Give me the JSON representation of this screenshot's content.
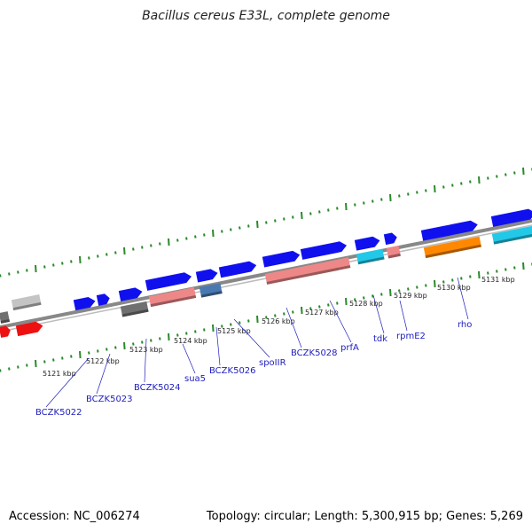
{
  "title": "Bacillus cereus E33L, complete genome",
  "footer": {
    "accession": "Accession: NC_006274",
    "summary": "Topology: circular; Length: 5,300,915 bp; Genes: 5,269"
  },
  "colors": {
    "backbone": "#888888",
    "tick": "#2a8a2a",
    "label": "#2020c0",
    "blue": "#1010ee",
    "red": "#ee1111",
    "gray": "#707070",
    "lightgray": "#c4c4c4",
    "pink": "#ee8888",
    "steelblue": "#4a78b0",
    "cyan": "#22c8e8",
    "orange": "#ff8800"
  },
  "scale_marks": [
    "5121 kbp",
    "5122 kbp",
    "5123 kbp",
    "5124 kbp",
    "5125 kbp",
    "5126 kbp",
    "5127 kbp",
    "5128 kbp",
    "5129 kbp",
    "5130 kbp",
    "5131 kbp"
  ],
  "gene_labels": [
    "BCZK5022",
    "BCZK5023",
    "BCZK5024",
    "sua5",
    "BCZK5026",
    "spoIIR",
    "BCZK5028",
    "prfA",
    "tdk",
    "rpmE2",
    "rho"
  ],
  "features": [
    {
      "name": "feature-gray-left",
      "color": "gray"
    },
    {
      "name": "feature-lightgray-left",
      "color": "lightgray"
    },
    {
      "name": "feature-red-left-a",
      "color": "red"
    },
    {
      "name": "feature-red-left-b",
      "color": "red"
    },
    {
      "name": "feature-blue-bczk5022",
      "color": "blue"
    },
    {
      "name": "feature-blue-bczk5023",
      "color": "blue"
    },
    {
      "name": "feature-blue-bczk5024",
      "color": "blue"
    },
    {
      "name": "feature-gray-bczk5024",
      "color": "gray"
    },
    {
      "name": "feature-blue-sua5",
      "color": "blue"
    },
    {
      "name": "feature-pink-sua5",
      "color": "pink"
    },
    {
      "name": "feature-blue-bczk5026",
      "color": "blue"
    },
    {
      "name": "feature-steelblue-bczk5026",
      "color": "steelblue"
    },
    {
      "name": "feature-blue-spoiir",
      "color": "blue"
    },
    {
      "name": "feature-blue-bczk5028a",
      "color": "blue"
    },
    {
      "name": "feature-blue-bczk5028b",
      "color": "blue"
    },
    {
      "name": "feature-pink-prfa",
      "color": "pink"
    },
    {
      "name": "feature-blue-tdk",
      "color": "blue"
    },
    {
      "name": "feature-blue-tdk-b",
      "color": "blue"
    },
    {
      "name": "feature-cyan-tdk",
      "color": "cyan"
    },
    {
      "name": "feature-pink-rpme2",
      "color": "pink"
    },
    {
      "name": "feature-blue-rho",
      "color": "blue"
    },
    {
      "name": "feature-orange-rho",
      "color": "orange"
    },
    {
      "name": "feature-blue-right",
      "color": "blue"
    },
    {
      "name": "feature-cyan-right",
      "color": "cyan"
    }
  ]
}
